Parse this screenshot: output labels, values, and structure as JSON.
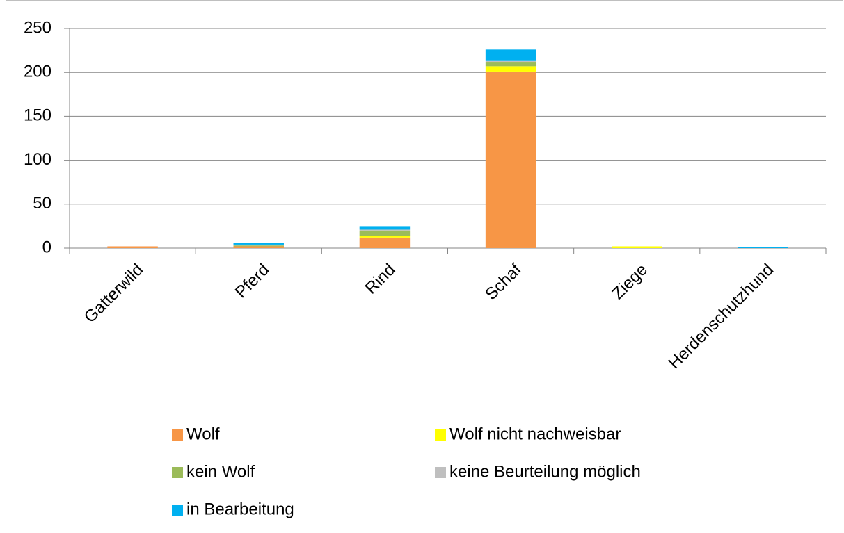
{
  "chart_data": {
    "type": "stacked_bar",
    "categories": [
      "Gatterwild",
      "Pferd",
      "Rind",
      "Schaf",
      "Ziege",
      "Herdenschutzhund"
    ],
    "series": [
      {
        "name": "Wolf",
        "color": "#f79646",
        "values": [
          2,
          2,
          12,
          201,
          0,
          0
        ]
      },
      {
        "name": "Wolf nicht nachweisbar",
        "color": "#ffff00",
        "values": [
          0,
          0,
          2,
          6,
          2,
          0
        ]
      },
      {
        "name": "kein Wolf",
        "color": "#9bbb59",
        "values": [
          0,
          1,
          6,
          5,
          0,
          0
        ]
      },
      {
        "name": "keine Beurteilung möglich",
        "color": "#bfbfbf",
        "values": [
          0,
          1,
          1,
          1,
          0,
          0
        ]
      },
      {
        "name": "in Bearbeitung",
        "color": "#00b0f0",
        "values": [
          0,
          2,
          4,
          13,
          0,
          1
        ]
      }
    ],
    "ylim": [
      0,
      250
    ],
    "yticks": [
      0,
      50,
      100,
      150,
      200,
      250
    ],
    "grid": true,
    "legend": "bottom"
  }
}
